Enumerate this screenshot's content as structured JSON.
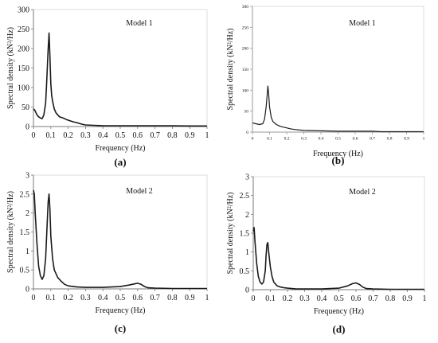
{
  "chart_data": [
    {
      "type": "line",
      "panel_label": "(a)",
      "annotation": "Model 1",
      "xlabel": "Frequency  (Hz)",
      "ylabel": "Spectral density (kN²/Hz)",
      "xlim": [
        0,
        1
      ],
      "ylim": [
        0,
        300
      ],
      "xticks": [
        "0",
        "0.1",
        "0.2",
        "0.3",
        "0.4",
        "0.5",
        "0.6",
        "0.7",
        "0.8",
        "0.9",
        "1"
      ],
      "yticks": [
        "0",
        "50",
        "100",
        "150",
        "200",
        "250",
        "300"
      ],
      "grid": false,
      "series": [
        {
          "x": [
            0,
            0.005,
            0.01,
            0.02,
            0.03,
            0.04,
            0.05,
            0.06,
            0.07,
            0.075,
            0.08,
            0.085,
            0.09,
            0.095,
            0.1,
            0.105,
            0.11,
            0.12,
            0.13,
            0.14,
            0.15,
            0.17,
            0.19,
            0.21,
            0.23,
            0.25,
            0.28,
            0.3,
            0.35,
            0.4,
            0.5,
            0.6,
            0.7,
            0.8,
            0.9,
            1.0
          ],
          "y": [
            45,
            43,
            40,
            30,
            25,
            22,
            20,
            30,
            60,
            100,
            150,
            200,
            240,
            180,
            110,
            80,
            65,
            45,
            35,
            30,
            25,
            22,
            18,
            15,
            12,
            10,
            6,
            4,
            3,
            2,
            2,
            2,
            2,
            2,
            1.5,
            1.5
          ]
        }
      ]
    },
    {
      "type": "line",
      "panel_label": "(b)",
      "annotation": "Model 1",
      "xlabel": "Frequency  (Hz)",
      "ylabel": "Spectral density (kN²/Hz)",
      "xlim": [
        0,
        1
      ],
      "ylim": [
        0,
        300
      ],
      "xticks": [
        "0",
        "0.1",
        "0.2",
        "0.3",
        "0.4",
        "0.5",
        "0.6",
        "0.7",
        "0.8",
        "0.9",
        "1"
      ],
      "yticks": [
        "0",
        "50",
        "100",
        "150",
        "200",
        "250",
        "300"
      ],
      "grid": false,
      "series": [
        {
          "x": [
            0,
            0.02,
            0.04,
            0.06,
            0.07,
            0.08,
            0.09,
            0.095,
            0.1,
            0.11,
            0.12,
            0.14,
            0.16,
            0.18,
            0.2,
            0.22,
            0.25,
            0.3,
            0.4,
            0.5,
            0.6,
            0.7,
            0.75,
            0.8,
            0.9,
            1.0
          ],
          "y": [
            22,
            20,
            18,
            20,
            30,
            60,
            110,
            90,
            60,
            35,
            25,
            18,
            14,
            12,
            10,
            8,
            6,
            4,
            3,
            2,
            2,
            2,
            1,
            1,
            1,
            1
          ]
        }
      ]
    },
    {
      "type": "line",
      "panel_label": "(c)",
      "annotation": "Model 2",
      "xlabel": "Frequency  (Hz)",
      "ylabel": "Spectral density (kN²/Hz)",
      "xlim": [
        0,
        1
      ],
      "ylim": [
        0,
        3
      ],
      "xticks": [
        "0",
        "0.1",
        "0.2",
        "0.3",
        "0.4",
        "0.5",
        "0.6",
        "0.7",
        "0.8",
        "0.9",
        "1"
      ],
      "yticks": [
        "0",
        "0.5",
        "1",
        "1.5",
        "2",
        "2.5",
        "3"
      ],
      "grid": false,
      "series": [
        {
          "x": [
            0,
            0.005,
            0.01,
            0.02,
            0.03,
            0.04,
            0.05,
            0.06,
            0.07,
            0.08,
            0.085,
            0.09,
            0.095,
            0.1,
            0.11,
            0.12,
            0.14,
            0.16,
            0.18,
            0.2,
            0.25,
            0.3,
            0.4,
            0.5,
            0.55,
            0.58,
            0.6,
            0.62,
            0.64,
            0.66,
            0.7,
            0.8,
            0.9,
            1.0
          ],
          "y": [
            2.6,
            2.5,
            2.0,
            1.2,
            0.6,
            0.35,
            0.25,
            0.35,
            0.8,
            1.8,
            2.3,
            2.5,
            2.1,
            1.4,
            0.8,
            0.5,
            0.3,
            0.2,
            0.12,
            0.08,
            0.05,
            0.04,
            0.04,
            0.06,
            0.1,
            0.13,
            0.15,
            0.12,
            0.06,
            0.03,
            0.02,
            0.01,
            0.01,
            0.01
          ]
        }
      ]
    },
    {
      "type": "line",
      "panel_label": "(d)",
      "annotation": "Model 2",
      "xlabel": "Frequency  (Hz)",
      "ylabel": "Spectral density (kN²/Hz)",
      "xlim": [
        0,
        1
      ],
      "ylim": [
        0,
        3
      ],
      "xticks": [
        "0",
        "0.1",
        "0.2",
        "0.3",
        "0.4",
        "0.5",
        "0.6",
        "0.7",
        "0.8",
        "0.9",
        "1"
      ],
      "yticks": [
        "0",
        "0.5",
        "1",
        "1.5",
        "2",
        "2.5",
        "3"
      ],
      "grid": false,
      "series": [
        {
          "x": [
            0,
            0.005,
            0.01,
            0.02,
            0.03,
            0.04,
            0.05,
            0.06,
            0.07,
            0.075,
            0.08,
            0.085,
            0.09,
            0.1,
            0.11,
            0.12,
            0.14,
            0.16,
            0.18,
            0.2,
            0.25,
            0.3,
            0.4,
            0.5,
            0.55,
            0.58,
            0.6,
            0.62,
            0.64,
            0.66,
            0.7,
            0.8,
            0.9,
            1.0
          ],
          "y": [
            1.55,
            1.65,
            1.3,
            0.7,
            0.35,
            0.2,
            0.15,
            0.2,
            0.5,
            0.9,
            1.2,
            1.25,
            1.0,
            0.6,
            0.35,
            0.2,
            0.1,
            0.07,
            0.05,
            0.04,
            0.02,
            0.02,
            0.02,
            0.04,
            0.1,
            0.16,
            0.18,
            0.14,
            0.07,
            0.03,
            0.02,
            0.01,
            0.01,
            0.01
          ]
        }
      ]
    }
  ]
}
